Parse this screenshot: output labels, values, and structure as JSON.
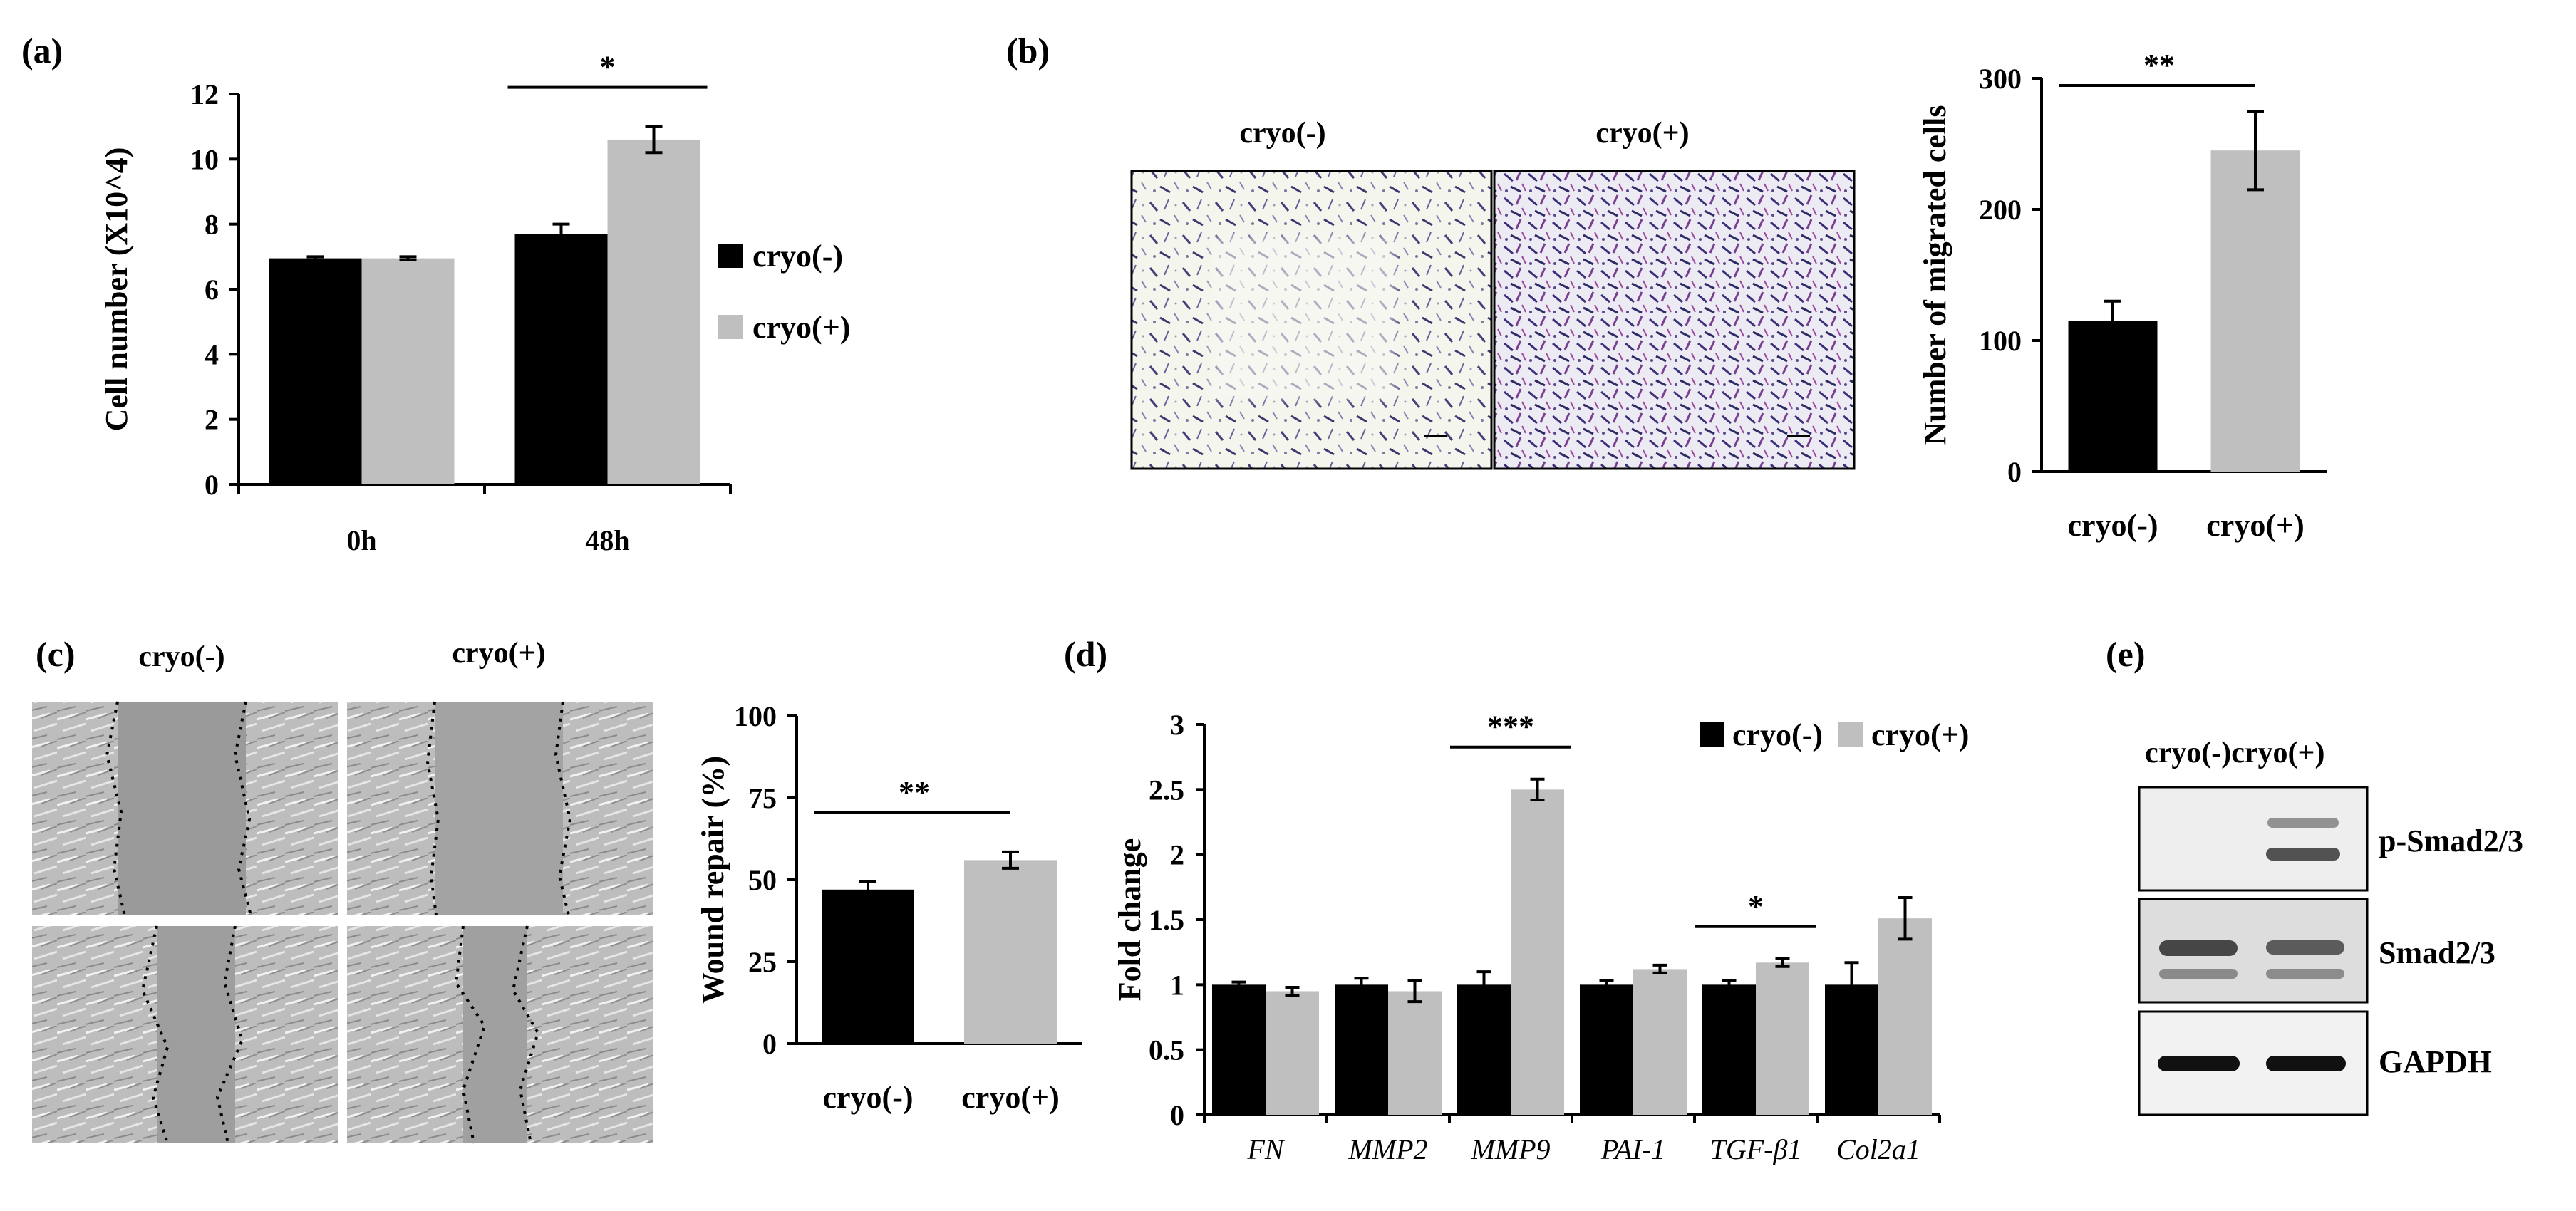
{
  "colors": {
    "cryo_minus": "#000000",
    "cryo_plus": "#bfbfbf",
    "axis": "#000000"
  },
  "panels": {
    "a": {
      "letter": "(a)"
    },
    "b": {
      "letter": "(b)",
      "image_labels": [
        "cryo(-)",
        "cryo(+)"
      ]
    },
    "c": {
      "letter": "(c)",
      "image_labels": [
        "cryo(-)",
        "cryo(+)"
      ]
    },
    "d": {
      "letter": "(d)"
    },
    "e": {
      "letter": "(e)",
      "header": "cryo(-)cryo(+)",
      "bands": [
        "p-Smad2/3",
        "Smad2/3",
        "GAPDH"
      ]
    }
  },
  "chart_data": [
    {
      "panel": "a",
      "type": "bar",
      "categories": [
        "0h",
        "48h"
      ],
      "series": [
        {
          "name": "cryo(-)",
          "values": [
            6.95,
            7.7
          ],
          "errors": [
            0.05,
            0.3
          ]
        },
        {
          "name": "cryo(+)",
          "values": [
            6.95,
            10.6
          ],
          "errors": [
            0.05,
            0.4
          ]
        }
      ],
      "ylabel": "Cell number (X10^4)",
      "xlabel": "",
      "ylim": [
        0,
        12
      ],
      "yticks": [
        "0",
        "2",
        "4",
        "6",
        "8",
        "10",
        "12"
      ],
      "legend": "right",
      "significance": [
        {
          "category": "48h",
          "label": "*"
        }
      ]
    },
    {
      "panel": "b",
      "type": "bar",
      "categories": [
        "cryo(-)",
        "cryo(+)"
      ],
      "values": [
        115,
        245
      ],
      "errors": [
        15,
        30
      ],
      "ylabel": "Number of migrated cells",
      "ylim": [
        0,
        300
      ],
      "yticks": [
        "0",
        "100",
        "200",
        "300"
      ],
      "significance": [
        {
          "label": "**"
        }
      ]
    },
    {
      "panel": "c",
      "type": "bar",
      "categories": [
        "cryo(-)",
        "cryo(+)"
      ],
      "values": [
        47,
        56
      ],
      "errors": [
        2.5,
        2.5
      ],
      "ylabel": "Wound repair (%)",
      "ylim": [
        0,
        100
      ],
      "yticks": [
        "0",
        "25",
        "50",
        "75",
        "100"
      ],
      "significance": [
        {
          "label": "**"
        }
      ]
    },
    {
      "panel": "d",
      "type": "bar",
      "categories": [
        "FN",
        "MMP2",
        "MMP9",
        "PAI-1",
        "TGF-β1",
        "Col2a1"
      ],
      "series": [
        {
          "name": "cryo(-)",
          "values": [
            1.0,
            1.0,
            1.0,
            1.0,
            1.0,
            1.0
          ],
          "errors": [
            0.02,
            0.05,
            0.1,
            0.03,
            0.03,
            0.17
          ]
        },
        {
          "name": "cryo(+)",
          "values": [
            0.95,
            0.95,
            2.5,
            1.12,
            1.17,
            1.51
          ],
          "errors": [
            0.03,
            0.08,
            0.08,
            0.03,
            0.03,
            0.16
          ]
        }
      ],
      "ylabel": "Fold change",
      "ylim": [
        0,
        3
      ],
      "yticks": [
        "0",
        "0.5",
        "1",
        "1.5",
        "2",
        "2.5",
        "3"
      ],
      "legend": "top-right",
      "significance": [
        {
          "category": "MMP9",
          "label": "***"
        },
        {
          "category": "TGF-β1",
          "label": "*"
        }
      ]
    }
  ]
}
